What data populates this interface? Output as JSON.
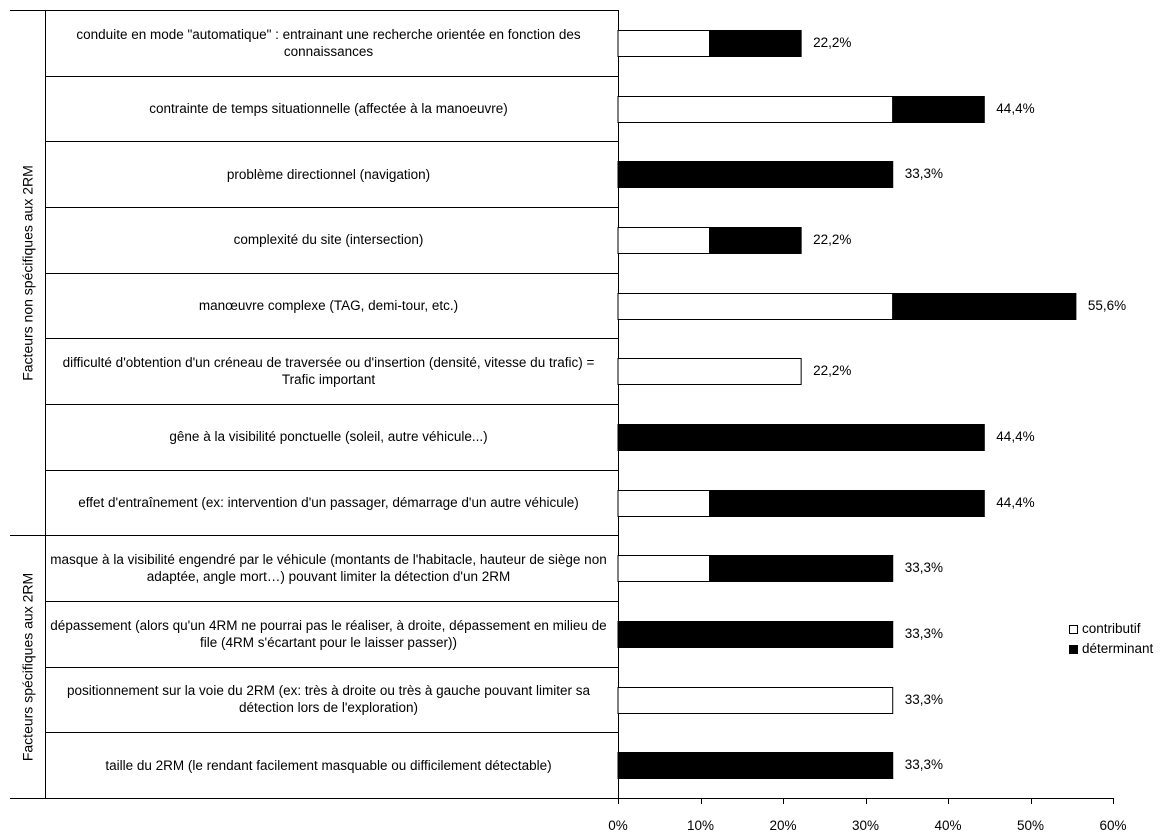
{
  "chart_data": {
    "type": "bar",
    "orientation": "horizontal",
    "stacked": true,
    "categories": [
      "conduite en mode \"automatique\" : entrainant une recherche orientée en fonction des connaissances",
      "contrainte de temps situationnelle (affectée à la manoeuvre)",
      "problème directionnel (navigation)",
      "complexité du site (intersection)",
      "manœuvre complexe (TAG, demi-tour, etc.)",
      "difficulté d'obtention d'un créneau de traversée ou d'insertion (densité, vitesse du trafic) = Trafic important",
      "gêne à la visibilité ponctuelle (soleil, autre véhicule...)",
      "effet d'entraînement (ex: intervention d'un passager, démarrage d'un autre véhicule)",
      "masque à la visibilité engendré par le véhicule (montants de l'habitacle, hauteur de siège non adaptée, angle mort…) pouvant limiter la détection d'un 2RM",
      "dépassement (alors qu'un 4RM ne pourrai pas le réaliser, à droite, dépassement en milieu de file (4RM s'écartant pour le laisser passer))",
      "positionnement sur la voie du 2RM (ex: très à droite ou très à gauche pouvant limiter sa détection lors de l'exploration)",
      "taille du 2RM (le rendant facilement masquable ou difficilement détectable)"
    ],
    "series": [
      {
        "name": "contributif",
        "color": "#ffffff",
        "values": [
          11.1,
          33.3,
          0,
          11.1,
          33.3,
          22.2,
          0,
          11.1,
          11.1,
          0,
          33.3,
          0
        ]
      },
      {
        "name": "déterminant",
        "color": "#000000",
        "values": [
          11.1,
          11.1,
          33.3,
          11.1,
          22.2,
          0,
          44.4,
          33.3,
          22.2,
          33.3,
          0,
          33.3
        ]
      }
    ],
    "data_labels": [
      "22,2%",
      "44,4%",
      "33,3%",
      "22,2%",
      "55,6%",
      "22,2%",
      "44,4%",
      "44,4%",
      "33,3%",
      "33,3%",
      "33,3%",
      "33,3%"
    ],
    "groups": [
      {
        "label": "Facteurs non spécifiques aux 2RM",
        "start": 0,
        "end": 7
      },
      {
        "label": "Facteurs spécifiques aux 2RM",
        "start": 8,
        "end": 11
      }
    ],
    "xlim": [
      0,
      60
    ],
    "xticks": [
      0,
      10,
      20,
      30,
      40,
      50,
      60
    ],
    "xtick_labels": [
      "0%",
      "10%",
      "20%",
      "30%",
      "40%",
      "50%",
      "60%"
    ],
    "grid": false,
    "legend_position": "right"
  }
}
